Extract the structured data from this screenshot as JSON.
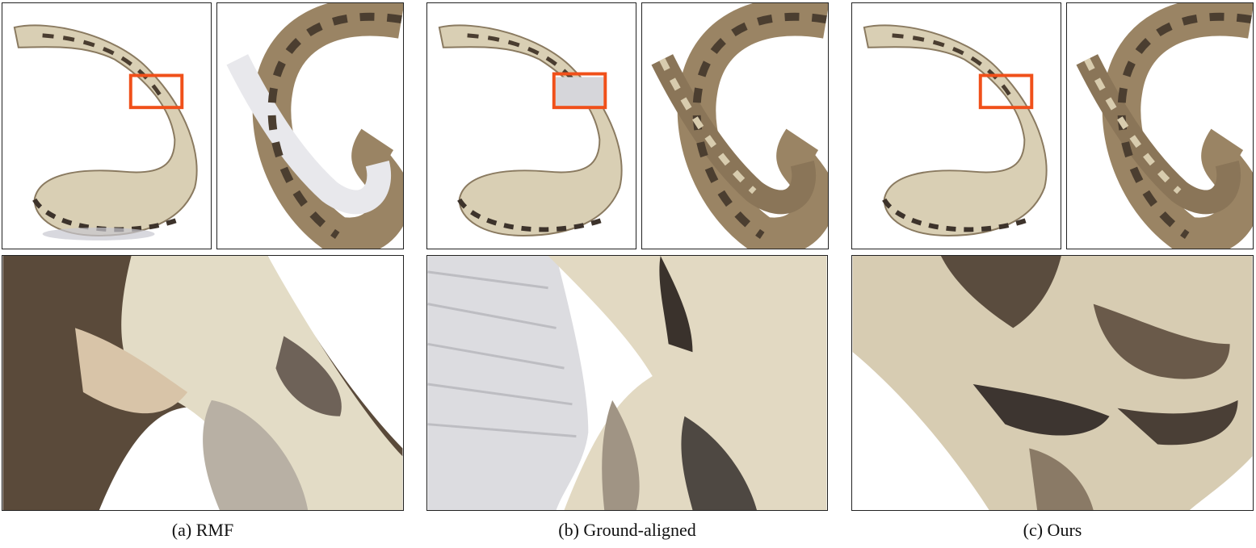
{
  "figure": {
    "columns": [
      {
        "caption": "(a) RMF"
      },
      {
        "caption": "(b) Ground-aligned"
      },
      {
        "caption": "(c) Ours"
      }
    ]
  },
  "colors": {
    "highlight_box": "#f0501a",
    "scale_light": "#e6dfc9",
    "scale_mid": "#b39a78",
    "scale_dark": "#5a4a3a",
    "scale_black": "#2b2622",
    "artifact_white": "#ececee"
  }
}
